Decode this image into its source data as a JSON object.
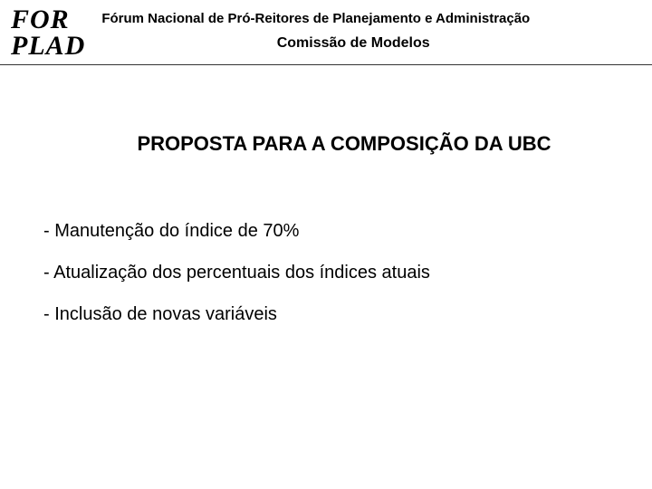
{
  "header": {
    "logo_line1": "FOR",
    "logo_line2": "PLAD",
    "title": "Fórum Nacional de Pró-Reitores de Planejamento e Administração",
    "subtitle": "Comissão de Modelos"
  },
  "content": {
    "section_title": "PROPOSTA PARA  A COMPOSIÇÃO DA UBC",
    "bullets": {
      "item0": "- Manutenção do índice de 70%",
      "item1": "- Atualização dos percentuais dos índices atuais",
      "item2": "- Inclusão de novas variáveis"
    }
  }
}
